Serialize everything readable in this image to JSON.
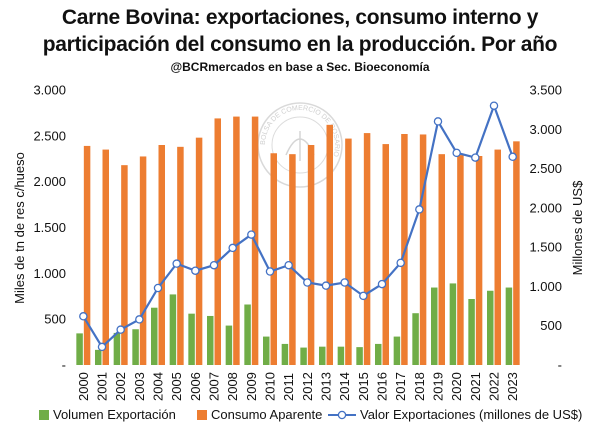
{
  "chart_data": {
    "type": "bar",
    "title_line1": "Carne Bovina: exportaciones, consumo interno y",
    "title_line2": "participación del consumo en la producción. Por año",
    "subtitle": "@BCRmercados  en base a Sec. Bioeconomía",
    "watermark": "BOLSA DE COMERCIO DE ROSARIO",
    "ylabel_left": "Miles de tn de res c/hueso",
    "ylabel_right": "Millones de US$",
    "ylim_left": [
      0,
      3000
    ],
    "ylim_right": [
      0,
      3500
    ],
    "yticks_left": [
      "-",
      "500",
      "1.000",
      "1.500",
      "2.000",
      "2.500",
      "3.000"
    ],
    "yticks_right": [
      "-",
      "500",
      "1.000",
      "1.500",
      "2.000",
      "2.500",
      "3.000",
      "3.500"
    ],
    "categories": [
      "2000",
      "2001",
      "2002",
      "2003",
      "2004",
      "2005",
      "2006",
      "2007",
      "2008",
      "2009",
      "2010",
      "2011",
      "2012",
      "2013",
      "2014",
      "2015",
      "2016",
      "2017",
      "2018",
      "2019",
      "2020",
      "2021",
      "2022",
      "2023"
    ],
    "series": [
      {
        "name": "Volumen Exportación",
        "axis": "left",
        "type": "bar",
        "color": "#70AD47",
        "values": [
          345,
          165,
          350,
          390,
          625,
          770,
          560,
          535,
          430,
          660,
          310,
          230,
          190,
          200,
          200,
          195,
          230,
          310,
          565,
          845,
          890,
          720,
          810,
          845
        ]
      },
      {
        "name": "Consumo Aparente",
        "axis": "left",
        "type": "bar",
        "color": "#ED7D31",
        "values": [
          2390,
          2350,
          2180,
          2275,
          2400,
          2380,
          2480,
          2690,
          2710,
          2710,
          2310,
          2300,
          2400,
          2620,
          2470,
          2530,
          2410,
          2520,
          2515,
          2300,
          2290,
          2280,
          2350,
          2440
        ]
      },
      {
        "name": "Valor Exportaciones (millones de US$)",
        "axis": "right",
        "type": "line",
        "color": "#4472C4",
        "values": [
          620,
          230,
          450,
          580,
          980,
          1290,
          1200,
          1270,
          1490,
          1660,
          1190,
          1270,
          1050,
          1010,
          1050,
          880,
          1030,
          1300,
          1980,
          3100,
          2700,
          2640,
          3300,
          2650
        ]
      }
    ],
    "legend": "bottom",
    "grid": false
  }
}
